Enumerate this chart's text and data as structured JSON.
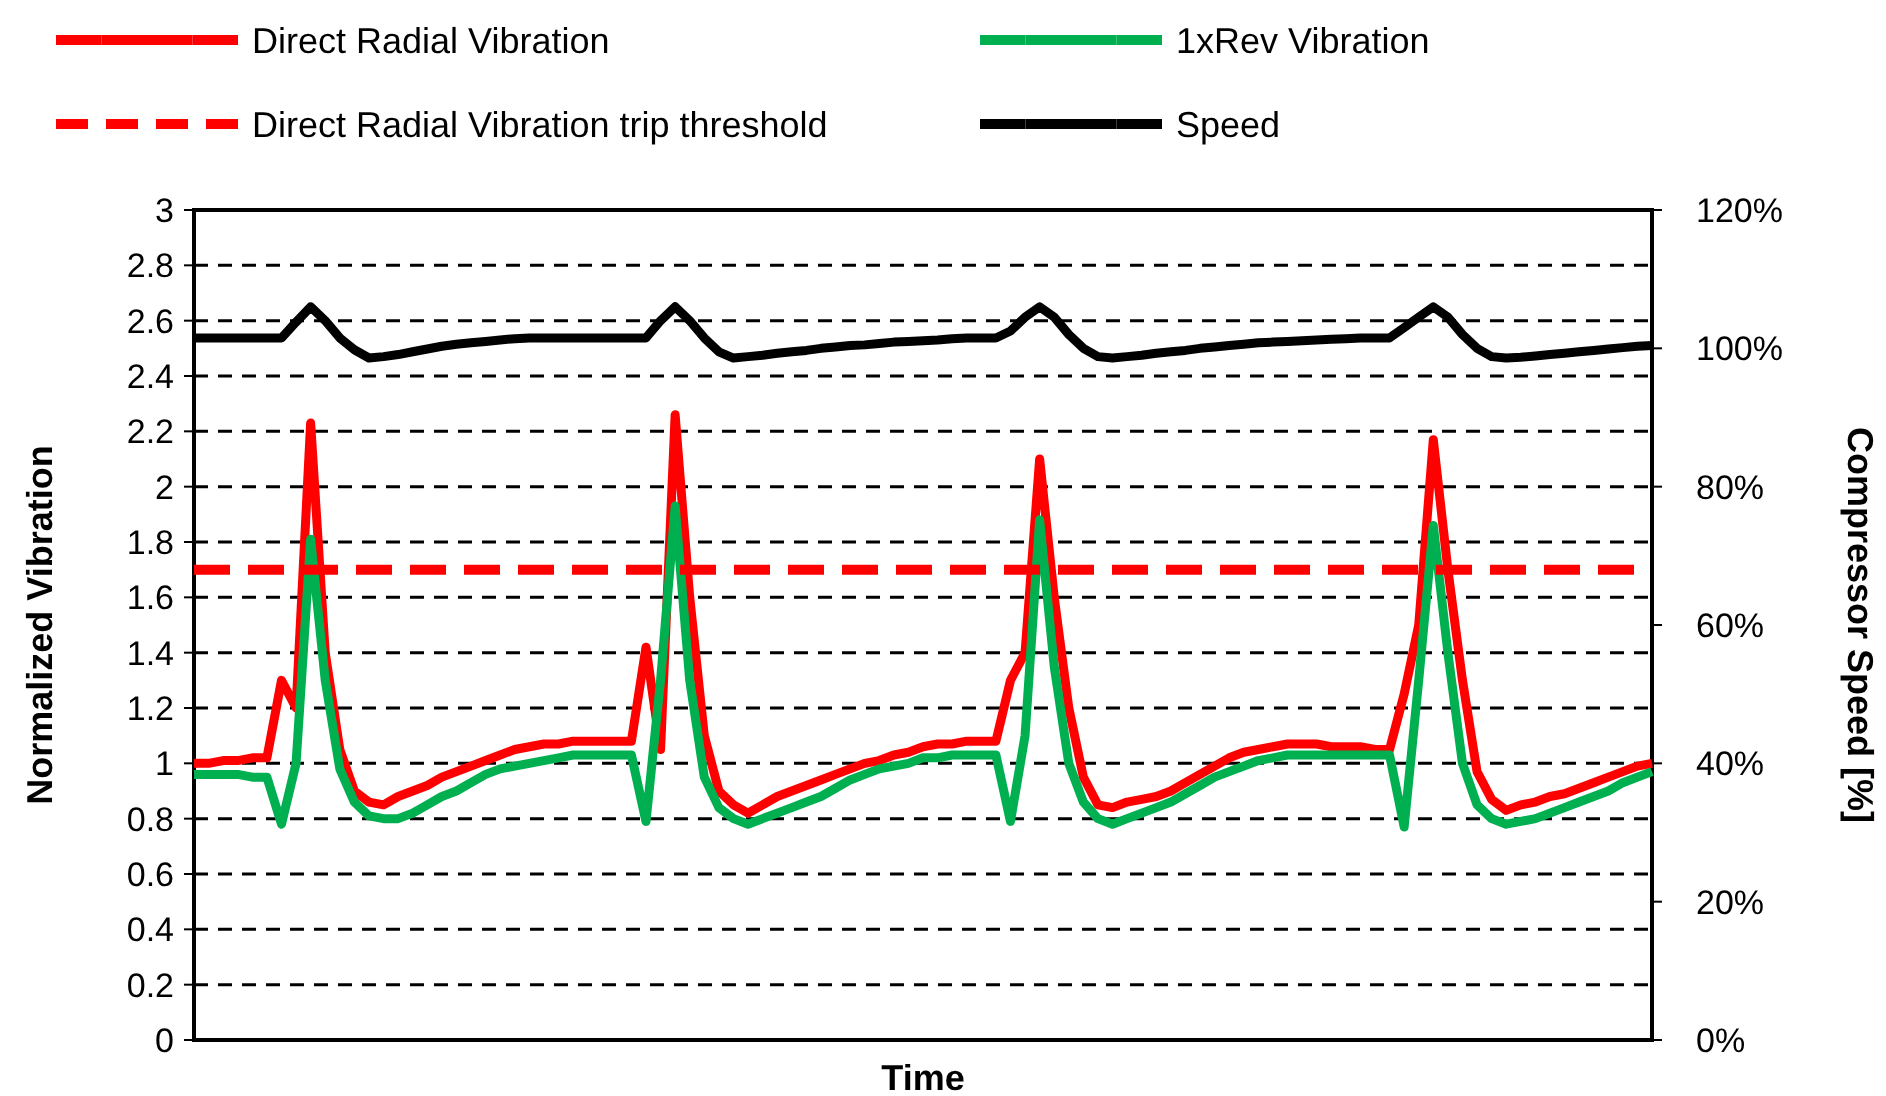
{
  "chart_data": {
    "type": "line",
    "xlabel": "Time",
    "ylabel": "Normalized Vibration",
    "y2label": "Compressor Speed [%]",
    "categories": [
      null,
      null,
      null,
      null,
      null,
      null,
      null,
      null,
      null,
      null,
      null,
      null,
      null,
      null,
      null,
      null,
      null,
      null,
      null,
      null,
      null,
      null,
      null,
      null,
      null,
      null,
      null,
      null,
      null,
      null,
      null,
      null,
      null,
      null,
      null,
      null,
      null,
      null,
      null,
      null,
      null,
      null,
      null,
      null,
      null,
      null,
      null,
      null,
      null,
      null,
      null,
      null,
      null,
      null,
      null,
      null,
      null,
      null,
      null,
      null,
      null,
      null,
      null,
      null,
      null,
      null,
      null,
      null,
      null,
      null,
      null,
      null,
      null,
      null,
      null,
      null,
      null,
      null,
      null,
      null,
      null,
      null,
      null,
      null,
      null,
      null,
      null,
      null,
      null,
      null,
      null,
      null,
      null,
      null,
      null,
      null,
      null,
      null,
      null,
      null,
      null
    ],
    "ylim": [
      0,
      3
    ],
    "yticks": [
      0,
      0.2,
      0.4,
      0.6,
      0.8,
      1,
      1.2,
      1.4,
      1.6,
      1.8,
      2,
      2.2,
      2.4,
      2.6,
      2.8,
      3
    ],
    "y2lim": [
      0,
      120
    ],
    "y2ticks": [
      {
        "value": 0,
        "label": "0%"
      },
      {
        "value": 20,
        "label": "20%"
      },
      {
        "value": 40,
        "label": "40%"
      },
      {
        "value": 60,
        "label": "60%"
      },
      {
        "value": 80,
        "label": "80%"
      },
      {
        "value": 100,
        "label": "100%"
      },
      {
        "value": 120,
        "label": "120%"
      }
    ],
    "grid": "y",
    "legend": "top",
    "marker": "none",
    "series": [
      {
        "name": "Direct Radial Vibration",
        "color": "#ff0000",
        "values": [
          1.0,
          1.0,
          1.01,
          1.01,
          1.02,
          1.02,
          1.3,
          1.2,
          2.23,
          1.4,
          1.05,
          0.9,
          0.86,
          0.85,
          0.88,
          0.9,
          0.92,
          0.95,
          0.97,
          0.99,
          1.01,
          1.03,
          1.05,
          1.06,
          1.07,
          1.07,
          1.08,
          1.08,
          1.08,
          1.08,
          1.08,
          1.42,
          1.05,
          2.26,
          1.6,
          1.1,
          0.9,
          0.85,
          0.82,
          0.85,
          0.88,
          0.9,
          0.92,
          0.94,
          0.96,
          0.98,
          1.0,
          1.01,
          1.03,
          1.04,
          1.06,
          1.07,
          1.07,
          1.08,
          1.08,
          1.08,
          1.3,
          1.4,
          2.1,
          1.6,
          1.2,
          0.95,
          0.85,
          0.84,
          0.86,
          0.87,
          0.88,
          0.9,
          0.93,
          0.96,
          0.99,
          1.02,
          1.04,
          1.05,
          1.06,
          1.07,
          1.07,
          1.07,
          1.06,
          1.06,
          1.06,
          1.05,
          1.05,
          1.25,
          1.5,
          2.17,
          1.7,
          1.3,
          0.97,
          0.87,
          0.83,
          0.85,
          0.86,
          0.88,
          0.89,
          0.91,
          0.93,
          0.95,
          0.97,
          0.99,
          1.0
        ]
      },
      {
        "name": "1xRev Vibration",
        "color": "#00b050",
        "values": [
          0.96,
          0.96,
          0.96,
          0.96,
          0.95,
          0.95,
          0.78,
          1.0,
          1.81,
          1.3,
          0.98,
          0.86,
          0.81,
          0.8,
          0.8,
          0.82,
          0.85,
          0.88,
          0.9,
          0.93,
          0.96,
          0.98,
          0.99,
          1.0,
          1.01,
          1.02,
          1.03,
          1.03,
          1.03,
          1.03,
          1.03,
          0.79,
          1.3,
          1.93,
          1.3,
          0.95,
          0.84,
          0.8,
          0.78,
          0.8,
          0.82,
          0.84,
          0.86,
          0.88,
          0.91,
          0.94,
          0.96,
          0.98,
          0.99,
          1.0,
          1.02,
          1.02,
          1.03,
          1.03,
          1.03,
          1.03,
          0.79,
          1.1,
          1.88,
          1.35,
          1.0,
          0.86,
          0.8,
          0.78,
          0.8,
          0.82,
          0.84,
          0.86,
          0.89,
          0.92,
          0.95,
          0.97,
          0.99,
          1.01,
          1.02,
          1.03,
          1.03,
          1.03,
          1.03,
          1.03,
          1.03,
          1.03,
          1.03,
          0.77,
          1.3,
          1.86,
          1.4,
          1.0,
          0.85,
          0.8,
          0.78,
          0.79,
          0.8,
          0.82,
          0.84,
          0.86,
          0.88,
          0.9,
          0.93,
          0.95,
          0.97
        ]
      },
      {
        "name": "Direct Radial Vibration trip threshold",
        "color": "#ff0000",
        "line_style": "dashed",
        "values": [
          1.7,
          1.7,
          1.7,
          1.7,
          1.7,
          1.7,
          1.7,
          1.7,
          1.7,
          1.7,
          1.7,
          1.7,
          1.7,
          1.7,
          1.7,
          1.7,
          1.7,
          1.7,
          1.7,
          1.7,
          1.7,
          1.7,
          1.7,
          1.7,
          1.7,
          1.7,
          1.7,
          1.7,
          1.7,
          1.7,
          1.7,
          1.7,
          1.7,
          1.7,
          1.7,
          1.7,
          1.7,
          1.7,
          1.7,
          1.7,
          1.7,
          1.7,
          1.7,
          1.7,
          1.7,
          1.7,
          1.7,
          1.7,
          1.7,
          1.7,
          1.7,
          1.7,
          1.7,
          1.7,
          1.7,
          1.7,
          1.7,
          1.7,
          1.7,
          1.7,
          1.7,
          1.7,
          1.7,
          1.7,
          1.7,
          1.7,
          1.7,
          1.7,
          1.7,
          1.7,
          1.7,
          1.7,
          1.7,
          1.7,
          1.7,
          1.7,
          1.7,
          1.7,
          1.7,
          1.7,
          1.7,
          1.7,
          1.7,
          1.7,
          1.7,
          1.7,
          1.7,
          1.7,
          1.7,
          1.7,
          1.7,
          1.7,
          1.7,
          1.7,
          1.7,
          1.7,
          1.7,
          1.7,
          1.7,
          1.7,
          1.7
        ]
      },
      {
        "name": "Speed",
        "color": "#000000",
        "axis": "y2",
        "values": [
          101.5,
          101.5,
          101.5,
          101.5,
          101.5,
          101.5,
          101.5,
          103.8,
          106,
          104,
          101.5,
          99.8,
          98.6,
          98.8,
          99.1,
          99.5,
          99.9,
          100.3,
          100.6,
          100.8,
          101,
          101.2,
          101.4,
          101.5,
          101.5,
          101.5,
          101.5,
          101.5,
          101.5,
          101.5,
          101.5,
          101.5,
          104,
          106,
          104,
          101.5,
          99.5,
          98.6,
          98.8,
          99,
          99.3,
          99.5,
          99.7,
          100,
          100.2,
          100.4,
          100.5,
          100.7,
          100.9,
          101,
          101.1,
          101.2,
          101.4,
          101.5,
          101.5,
          101.5,
          102.5,
          104.5,
          106,
          104.5,
          102,
          100,
          98.8,
          98.6,
          98.8,
          99,
          99.3,
          99.5,
          99.7,
          100,
          100.2,
          100.4,
          100.6,
          100.8,
          100.9,
          101,
          101.1,
          101.2,
          101.3,
          101.4,
          101.5,
          101.5,
          101.5,
          103,
          104.5,
          106,
          104.5,
          102,
          100,
          98.8,
          98.6,
          98.7,
          98.9,
          99.1,
          99.3,
          99.5,
          99.7,
          99.9,
          100.1,
          100.3,
          100.4
        ]
      }
    ]
  }
}
